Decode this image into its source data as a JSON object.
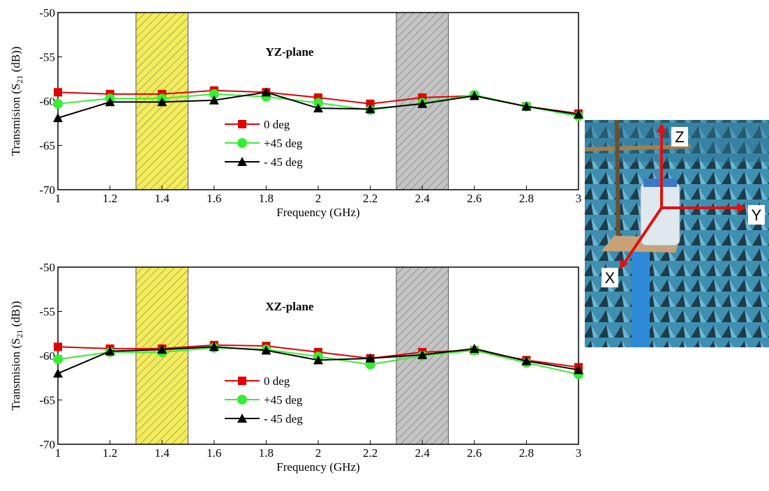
{
  "chart_data": [
    {
      "type": "line",
      "annotation": "YZ-plane",
      "xlabel": "Frequency (GHz)",
      "ylabel": {
        "text": "Transmision (S",
        "sub": "21",
        "after": " (dB))"
      },
      "x": [
        1,
        1.2,
        1.4,
        1.6,
        1.8,
        2,
        2.2,
        2.4,
        2.6,
        2.8,
        3
      ],
      "xlim": [
        1,
        3
      ],
      "xticks": [
        1,
        1.2,
        1.4,
        1.6,
        1.8,
        2,
        2.2,
        2.4,
        2.6,
        2.8,
        3
      ],
      "ylim": [
        -70,
        -50
      ],
      "yticks": [
        -70,
        -65,
        -60,
        -55,
        -50
      ],
      "bands": [
        {
          "range": [
            1.3,
            1.5
          ],
          "color": "#f3ec5c"
        },
        {
          "range": [
            2.3,
            2.5
          ],
          "color": "#c4c4c4"
        }
      ],
      "series": [
        {
          "name": "0 deg",
          "color": "#e00000",
          "marker": "square",
          "values": [
            -59,
            -59.2,
            -59.2,
            -58.8,
            -59,
            -59.6,
            -60.3,
            -59.6,
            -59.4,
            -60.6,
            -61.4
          ]
        },
        {
          "name": "+45 deg",
          "color": "#33ee33",
          "marker": "circle",
          "values": [
            -60.3,
            -59.7,
            -59.7,
            -59.2,
            -59.5,
            -60.2,
            -61,
            -60.2,
            -59.3,
            -60.6,
            -61.7
          ]
        },
        {
          "name": "- 45 deg",
          "color": "#000000",
          "marker": "triangle",
          "values": [
            -61.9,
            -60.1,
            -60.1,
            -59.9,
            -59,
            -60.8,
            -60.9,
            -60.3,
            -59.4,
            -60.6,
            -61.5
          ]
        }
      ]
    },
    {
      "type": "line",
      "annotation": "XZ-plane",
      "xlabel": "Frequency (GHz)",
      "ylabel": {
        "text": "Transmision (S",
        "sub": "21",
        "after": " (dB))"
      },
      "x": [
        1,
        1.2,
        1.4,
        1.6,
        1.8,
        2,
        2.2,
        2.4,
        2.6,
        2.8,
        3
      ],
      "xlim": [
        1,
        3
      ],
      "xticks": [
        1,
        1.2,
        1.4,
        1.6,
        1.8,
        2,
        2.2,
        2.4,
        2.6,
        2.8,
        3
      ],
      "ylim": [
        -70,
        -50
      ],
      "yticks": [
        -70,
        -65,
        -60,
        -55,
        -50
      ],
      "bands": [
        {
          "range": [
            1.3,
            1.5
          ],
          "color": "#f3ec5c"
        },
        {
          "range": [
            2.3,
            2.5
          ],
          "color": "#c4c4c4"
        }
      ],
      "series": [
        {
          "name": "0 deg",
          "color": "#e00000",
          "marker": "square",
          "values": [
            -59,
            -59.2,
            -59.2,
            -58.8,
            -58.9,
            -59.6,
            -60.3,
            -59.6,
            -59.4,
            -60.5,
            -61.3
          ]
        },
        {
          "name": "+45 deg",
          "color": "#33ee33",
          "marker": "circle",
          "values": [
            -60.4,
            -59.6,
            -59.6,
            -59.1,
            -59.3,
            -60.1,
            -61,
            -60,
            -59.4,
            -60.8,
            -62.1
          ]
        },
        {
          "name": "- 45 deg",
          "color": "#000000",
          "marker": "triangle",
          "values": [
            -62,
            -59.5,
            -59.3,
            -59,
            -59.4,
            -60.5,
            -60.3,
            -59.9,
            -59.2,
            -60.6,
            -61.6
          ]
        }
      ]
    }
  ],
  "photo_labels": {
    "z": "Z",
    "y": "Y",
    "x": "X"
  }
}
